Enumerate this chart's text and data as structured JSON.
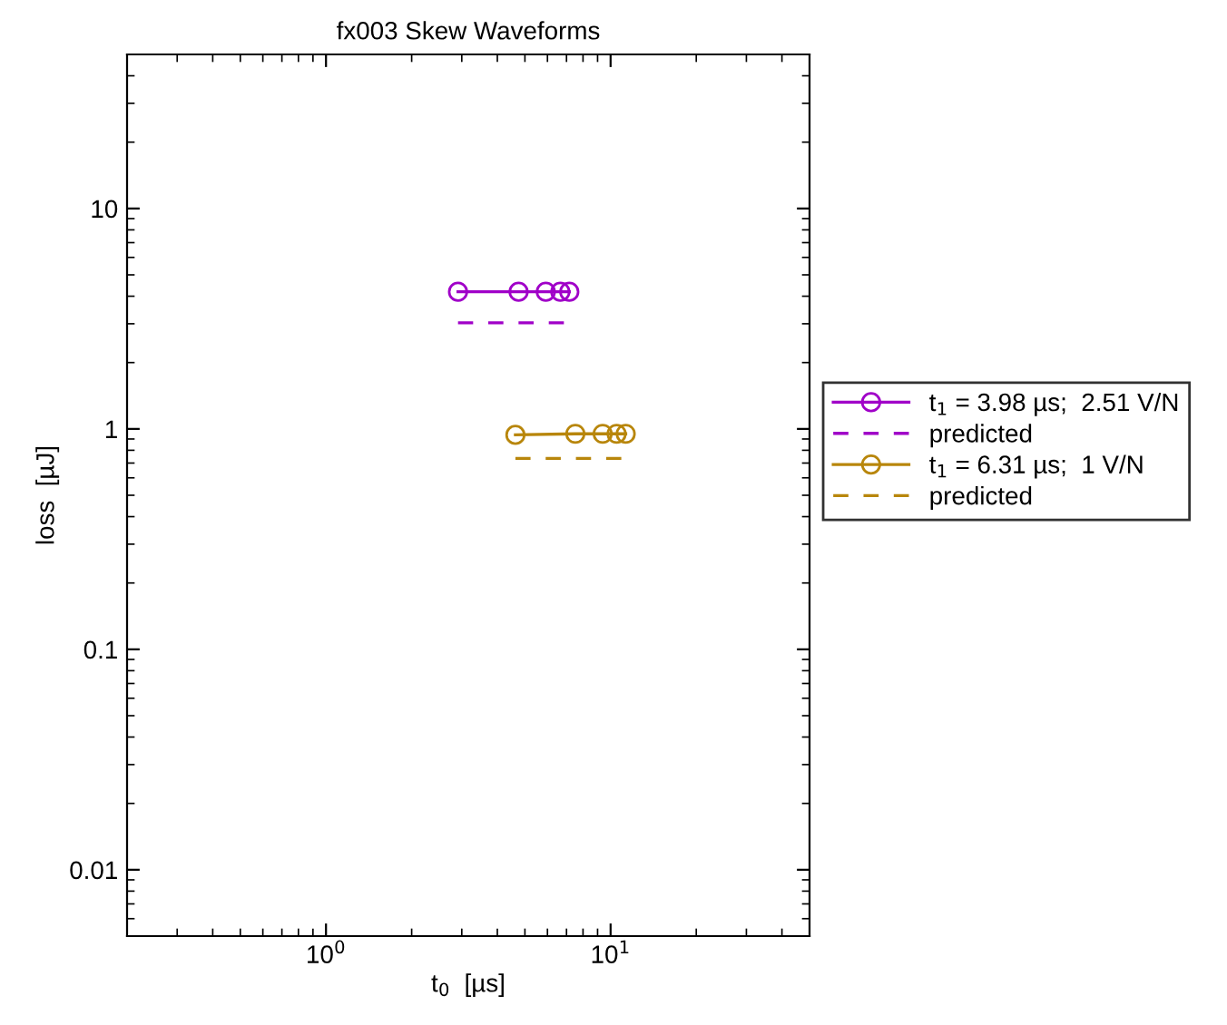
{
  "chart_data": {
    "type": "line",
    "title": "fx003 Skew Waveforms",
    "xlabel": "t$_{0}$  [µs]",
    "ylabel": "loss  [µJ]",
    "log": "xy",
    "xlim": [
      0.2,
      50
    ],
    "ylim": [
      0.005,
      50
    ],
    "xticks": [
      {
        "value": 1,
        "label": "10$^{0}$"
      },
      {
        "value": 10,
        "label": "10$^{1}$"
      }
    ],
    "yticks": [
      0.01,
      0.1,
      1,
      10
    ],
    "grid": false,
    "legend": "right",
    "marker": "circle",
    "line_style": "solid",
    "series": [
      {
        "name": "t$_{1}$ = 3.98 µs;  2.51 V/N",
        "color": "#a000c8",
        "x": [
          2.91,
          4.75,
          5.92,
          6.66,
          7.16
        ],
        "values": [
          4.19,
          4.19,
          4.19,
          4.19,
          4.19
        ]
      },
      {
        "name": "predicted",
        "color": "#a000c8",
        "x": [
          2.91,
          4.75,
          5.92,
          6.66,
          7.16
        ],
        "values": [
          3.03,
          3.03,
          3.03,
          3.03,
          3.03
        ],
        "marker": "none",
        "line_style": "dashed"
      },
      {
        "name": "t$_{1}$ = 6.31 µs;  1 V/N",
        "color": "#b8860b",
        "x": [
          4.63,
          7.52,
          9.38,
          10.5,
          11.3
        ],
        "values": [
          0.94,
          0.95,
          0.95,
          0.95,
          0.95
        ]
      },
      {
        "name": "predicted",
        "color": "#b8860b",
        "x": [
          4.63,
          7.52,
          9.38,
          10.5,
          11.3
        ],
        "values": [
          0.735,
          0.735,
          0.735,
          0.735,
          0.735
        ],
        "marker": "none",
        "line_style": "dashed"
      }
    ]
  }
}
